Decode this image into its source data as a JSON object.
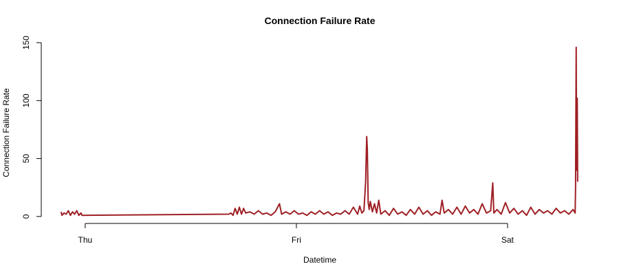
{
  "chart_data": {
    "type": "line",
    "title": "Connection Failure Rate",
    "x_label": "Datetime",
    "y_label": "Connection Failure Rate",
    "xlim": [
      -0.208,
      2.43
    ],
    "xticks": [
      {
        "value": 0,
        "label": "Thu"
      },
      {
        "value": 1,
        "label": "Fri"
      },
      {
        "value": 2,
        "label": "Sat"
      }
    ],
    "ylim": [
      -6,
      153
    ],
    "yticks": [
      0,
      50,
      100,
      150
    ],
    "series": [
      {
        "name": "Connection Failure Rate",
        "color": "#9e1f24",
        "x": [
          -0.114,
          -0.11,
          -0.1,
          -0.09,
          -0.08,
          -0.07,
          -0.06,
          -0.05,
          -0.04,
          -0.03,
          -0.02,
          -0.015,
          0.68,
          0.69,
          0.7,
          0.71,
          0.72,
          0.73,
          0.74,
          0.75,
          0.76,
          0.78,
          0.8,
          0.82,
          0.84,
          0.86,
          0.88,
          0.9,
          0.92,
          0.93,
          0.95,
          0.97,
          0.99,
          1.01,
          1.03,
          1.05,
          1.07,
          1.09,
          1.11,
          1.13,
          1.15,
          1.17,
          1.19,
          1.21,
          1.23,
          1.25,
          1.27,
          1.29,
          1.3,
          1.31,
          1.32,
          1.328,
          1.333,
          1.336,
          1.34,
          1.345,
          1.35,
          1.36,
          1.37,
          1.38,
          1.39,
          1.4,
          1.42,
          1.44,
          1.46,
          1.48,
          1.5,
          1.52,
          1.54,
          1.56,
          1.58,
          1.6,
          1.62,
          1.64,
          1.66,
          1.68,
          1.69,
          1.7,
          1.72,
          1.74,
          1.76,
          1.78,
          1.8,
          1.82,
          1.84,
          1.86,
          1.88,
          1.9,
          1.92,
          1.93,
          1.935,
          1.95,
          1.97,
          1.99,
          2.01,
          2.03,
          2.05,
          2.07,
          2.09,
          2.11,
          2.13,
          2.15,
          2.17,
          2.19,
          2.21,
          2.23,
          2.25,
          2.27,
          2.29,
          2.31,
          2.32,
          2.322,
          2.325,
          2.327,
          2.33,
          2.332
        ],
        "values": [
          4,
          1,
          3,
          2,
          5,
          1,
          4,
          2,
          5,
          1,
          3,
          1,
          2,
          3,
          1,
          7,
          2,
          8,
          2,
          7,
          3,
          4,
          2,
          5,
          2,
          3,
          1,
          4,
          11,
          2,
          4,
          2,
          5,
          2,
          3,
          1,
          4,
          2,
          5,
          2,
          4,
          1,
          3,
          2,
          5,
          2,
          8,
          2,
          9,
          3,
          5,
          30,
          69,
          58,
          12,
          6,
          13,
          4,
          11,
          3,
          14,
          2,
          5,
          1,
          7,
          2,
          4,
          1,
          6,
          2,
          8,
          2,
          5,
          1,
          4,
          2,
          14,
          3,
          6,
          2,
          8,
          2,
          9,
          3,
          6,
          2,
          11,
          3,
          5,
          29,
          3,
          6,
          2,
          12,
          3,
          7,
          2,
          5,
          1,
          8,
          2,
          6,
          3,
          5,
          2,
          7,
          3,
          5,
          2,
          6,
          3,
          25,
          146,
          40,
          102,
          30
        ]
      }
    ]
  }
}
